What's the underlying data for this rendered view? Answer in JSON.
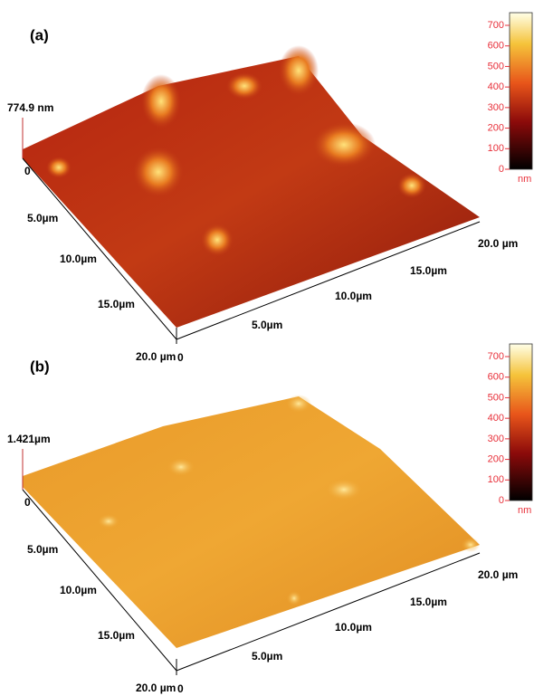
{
  "panels": [
    {
      "label": "(a)",
      "z_label": "774.9 nm",
      "z_zero": "0",
      "left_axis": [
        "5.0µm",
        "10.0µm",
        "15.0µm",
        "20.0 µm"
      ],
      "front_zero": "0",
      "right_axis": [
        "5.0µm",
        "10.0µm",
        "15.0µm",
        "20.0 µm"
      ],
      "colorbar": {
        "ticks": [
          0,
          100,
          200,
          300,
          400,
          500,
          600,
          700
        ],
        "unit": "nm"
      }
    },
    {
      "label": "(b)",
      "z_label": "1.421µm",
      "z_zero": "0",
      "left_axis": [
        "5.0µm",
        "10.0µm",
        "15.0µm",
        "20.0 µm"
      ],
      "front_zero": "0",
      "right_axis": [
        "5.0µm",
        "10.0µm",
        "15.0µm",
        "20.0 µm"
      ],
      "colorbar": {
        "ticks": [
          0,
          100,
          200,
          300,
          400,
          500,
          600,
          700
        ],
        "unit": "nm"
      }
    }
  ]
}
